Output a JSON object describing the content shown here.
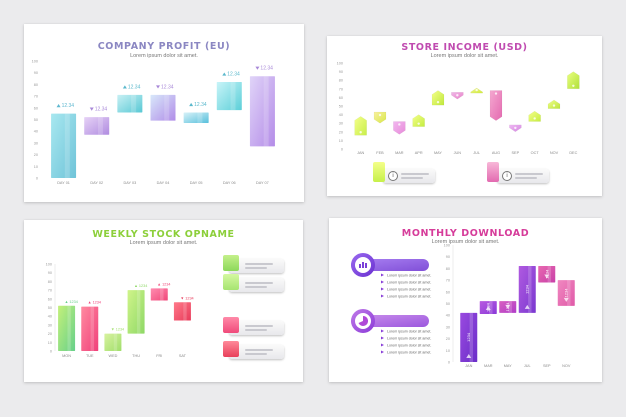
{
  "panels": {
    "p1": {
      "title": "COMPANY PROFIT (EU)",
      "subtitle": "Lorem ipsum dolor sit amet.",
      "color": "#8b87c2"
    },
    "p2": {
      "title": "STORE INCOME (USD)",
      "subtitle": "Lorem ipsum dolor sit amet.",
      "color": "#c04bb0"
    },
    "p3": {
      "title": "WEEKLY STOCK OPNAME",
      "subtitle": "Lorem ipsum dolor sit amet.",
      "color": "#8ccf3a"
    },
    "p4": {
      "title": "MONTHLY DOWNLOAD",
      "subtitle": "Lorem ipsum dolor sit amet.",
      "color": "#d63c9a"
    }
  },
  "p2_cards": [
    {
      "label": "Lorem ipsum",
      "icon": "info-icon",
      "color": "#c6f04a"
    },
    {
      "label": "Lorem ipsum",
      "icon": "info-icon",
      "color": "#f2a0c0"
    }
  ],
  "p3_cards": [
    {
      "label": "Lorem ipsum",
      "icon": "chart-icon",
      "color": "#9ddc55"
    },
    {
      "label": "Lorem ipsum",
      "icon": "pin-icon",
      "color": "#bff08a"
    },
    {
      "label": "Lorem ipsum",
      "icon": "chart-icon",
      "color": "#f04a7a"
    },
    {
      "label": "Lorem ipsum",
      "icon": "alert-icon",
      "color": "#f05a6a"
    }
  ],
  "p4_cards": [
    {
      "label": "Lorem ipsum",
      "icon": "chart-icon",
      "color": "#8a3ee0"
    },
    {
      "label": "Lorem ipsum",
      "icon": "pie-icon",
      "color": "#c43ed8"
    }
  ],
  "card_text": "Lorem ipsum dolor sit amet.",
  "chart_data": [
    {
      "type": "bar",
      "title": "COMPANY PROFIT (EU)",
      "subtitle": "Lorem ipsum dolor sit amet.",
      "categories": [
        "DAY 01",
        "DAY 02",
        "DAY 03",
        "DAY 04",
        "DAY 05",
        "DAY 06",
        "DAY 07"
      ],
      "ranges": [
        [
          0,
          55
        ],
        [
          37,
          52
        ],
        [
          56,
          71
        ],
        [
          49,
          71
        ],
        [
          47,
          56
        ],
        [
          58,
          82
        ],
        [
          27,
          87
        ]
      ],
      "labels": [
        "12.34",
        "12.34",
        "12.34",
        "12.34",
        "12.34",
        "12.34",
        "12.34"
      ],
      "direction": [
        "up",
        "down",
        "up",
        "down",
        "up",
        "up",
        "down"
      ],
      "colors": [
        [
          "#a8e8f0",
          "#6fc3d8"
        ],
        [
          "#e6d2f6",
          "#b08ce0"
        ],
        [
          "#c8f0f4",
          "#58c8d4"
        ],
        [
          "#d8e8fa",
          "#b08ce8"
        ],
        [
          "#d8f2f8",
          "#58c0dc"
        ],
        [
          "#c8f4f8",
          "#5ccfd8"
        ],
        [
          "#e0d4f8",
          "#b48ce8"
        ]
      ],
      "arrow_colors": [
        "#5fb8d0",
        "#a888d8",
        "#5ab8cc",
        "#a888d8",
        "#5ab8cc",
        "#5ab8cc",
        "#a888d8"
      ],
      "yticks": [
        0,
        10,
        20,
        30,
        40,
        50,
        60,
        70,
        80,
        90,
        100
      ],
      "ylim": [
        0,
        100
      ]
    },
    {
      "type": "bar",
      "title": "STORE INCOME (USD)",
      "subtitle": "Lorem ipsum dolor sit amet.",
      "categories": [
        "JAN",
        "FEB",
        "MAR",
        "APR",
        "MAY",
        "JUN",
        "JUL",
        "AUG",
        "SEP",
        "OCT",
        "NOV",
        "DEC"
      ],
      "ranges": [
        [
          16,
          38
        ],
        [
          30,
          43
        ],
        [
          17,
          32
        ],
        [
          26,
          40
        ],
        [
          51,
          68
        ],
        [
          58,
          66
        ],
        [
          65,
          71
        ],
        [
          33,
          68
        ],
        [
          20,
          28
        ],
        [
          32,
          44
        ],
        [
          47,
          57
        ],
        [
          70,
          90
        ]
      ],
      "direction": [
        "up",
        "down",
        "down",
        "up",
        "up",
        "down",
        "up",
        "down",
        "down",
        "up",
        "up",
        "up"
      ],
      "colors": [
        [
          "#f4ff8a",
          "#c8ee4a"
        ],
        [
          "#f8f0a0",
          "#d8e848"
        ],
        [
          "#f2b8f0",
          "#e78ad8"
        ],
        [
          "#f4ff8a",
          "#c4ec40"
        ],
        [
          "#f4ff8a",
          "#c0e83c"
        ],
        [
          "#f0b8e8",
          "#e882c8"
        ],
        [
          "#eef48a",
          "#d2ec40"
        ],
        [
          "#f4a8d0",
          "#e46ab0"
        ],
        [
          "#f0b8f4",
          "#d488e0"
        ],
        [
          "#f4ff8a",
          "#c6ec40"
        ],
        [
          "#f0ff8a",
          "#bce43c"
        ],
        [
          "#eaff80",
          "#b0e03a"
        ]
      ],
      "yticks": [
        0,
        10,
        20,
        30,
        40,
        50,
        60,
        70,
        80,
        90,
        100
      ],
      "ylim": [
        0,
        100
      ]
    },
    {
      "type": "bar",
      "title": "WEEKLY STOCK OPNAME",
      "subtitle": "Lorem ipsum dolor sit amet.",
      "categories": [
        "MON",
        "TUE",
        "WED",
        "THU",
        "FRI",
        "SAT"
      ],
      "ranges": [
        [
          0,
          52
        ],
        [
          0,
          51
        ],
        [
          0,
          20
        ],
        [
          20,
          70
        ],
        [
          58,
          72
        ],
        [
          35,
          56
        ]
      ],
      "labels": [
        "1234",
        "1234",
        "1234",
        "1234",
        "1234",
        "1234"
      ],
      "direction": [
        "up",
        "up",
        "down",
        "up",
        "up",
        "down"
      ],
      "colors": [
        [
          "#c4f07a",
          "#66d08a"
        ],
        [
          "#ff8aa0",
          "#f0407a"
        ],
        [
          "#d8f2a0",
          "#a0de6a"
        ],
        [
          "#d0f48a",
          "#8ed866"
        ],
        [
          "#ff8cb0",
          "#f0487a"
        ],
        [
          "#ff7a8a",
          "#e83a5a"
        ]
      ],
      "yticks": [
        0,
        10,
        20,
        30,
        40,
        50,
        60,
        70,
        80,
        90,
        100
      ],
      "ylim": [
        0,
        100
      ]
    },
    {
      "type": "bar",
      "title": "MONTHLY DOWNLOAD",
      "subtitle": "Lorem ipsum dolor sit amet.",
      "categories": [
        "JAN",
        "MAR",
        "MAY",
        "JUL",
        "SEP",
        "NOV"
      ],
      "ranges": [
        [
          0,
          42
        ],
        [
          41,
          52
        ],
        [
          42,
          52
        ],
        [
          42,
          82
        ],
        [
          68,
          82
        ],
        [
          48,
          70
        ]
      ],
      "labels": [
        "1234",
        "1234",
        "1234",
        "1234",
        "1234",
        "1234"
      ],
      "direction": [
        "up",
        "up",
        "down",
        "up",
        "down",
        "down"
      ],
      "colors": [
        [
          "#9a4ae0",
          "#6a2ec8"
        ],
        [
          "#b85ae0",
          "#8a3ad8"
        ],
        [
          "#d860c0",
          "#b03cc8"
        ],
        [
          "#b05ae0",
          "#7a38d0"
        ],
        [
          "#e868b0",
          "#c840a8"
        ],
        [
          "#f088c0",
          "#e05aa8"
        ]
      ],
      "yticks": [
        0,
        10,
        20,
        30,
        40,
        50,
        60,
        70,
        80,
        90,
        100
      ],
      "ylim": [
        0,
        100
      ]
    }
  ]
}
